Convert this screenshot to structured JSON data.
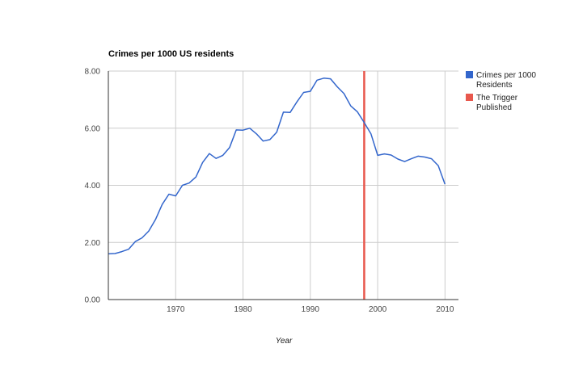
{
  "chart_data": {
    "type": "line",
    "title": "Crimes per 1000 US residents",
    "xlabel": "Year",
    "ylabel": "",
    "xlim": [
      1960,
      2012
    ],
    "ylim": [
      0,
      8
    ],
    "x_ticks": [
      1970,
      1980,
      1990,
      2000,
      2010
    ],
    "x_tick_labels": [
      "1970",
      "1980",
      "1990",
      "2000",
      "2010"
    ],
    "y_ticks": [
      0,
      2,
      4,
      6,
      8
    ],
    "y_tick_labels": [
      "0.00",
      "2.00",
      "4.00",
      "6.00",
      "8.00"
    ],
    "grid": true,
    "legend_position": "right",
    "series": [
      {
        "name": "Crimes per 1000 Residents",
        "color": "#3366cc",
        "x": [
          1960,
          1961,
          1962,
          1963,
          1964,
          1965,
          1966,
          1967,
          1968,
          1969,
          1970,
          1971,
          1972,
          1973,
          1974,
          1975,
          1976,
          1977,
          1978,
          1979,
          1980,
          1981,
          1982,
          1983,
          1984,
          1985,
          1986,
          1987,
          1988,
          1989,
          1990,
          1991,
          1992,
          1993,
          1994,
          1995,
          1996,
          1997,
          1998,
          1999,
          2000,
          2001,
          2002,
          2003,
          2004,
          2005,
          2006,
          2007,
          2008,
          2009,
          2010
        ],
        "y": [
          1.6,
          1.61,
          1.68,
          1.76,
          2.03,
          2.16,
          2.4,
          2.8,
          3.33,
          3.69,
          3.63,
          4.0,
          4.08,
          4.29,
          4.8,
          5.11,
          4.94,
          5.05,
          5.32,
          5.94,
          5.93,
          6.0,
          5.8,
          5.55,
          5.6,
          5.86,
          6.56,
          6.55,
          6.92,
          7.25,
          7.29,
          7.68,
          7.75,
          7.73,
          7.45,
          7.21,
          6.78,
          6.57,
          6.2,
          5.8,
          5.05,
          5.1,
          5.06,
          4.92,
          4.83,
          4.93,
          5.02,
          4.99,
          4.93,
          4.69,
          4.04
        ]
      },
      {
        "name": "The Trigger Published",
        "color": "#e8584d",
        "type": "vertical-line",
        "x": 1998
      }
    ]
  }
}
